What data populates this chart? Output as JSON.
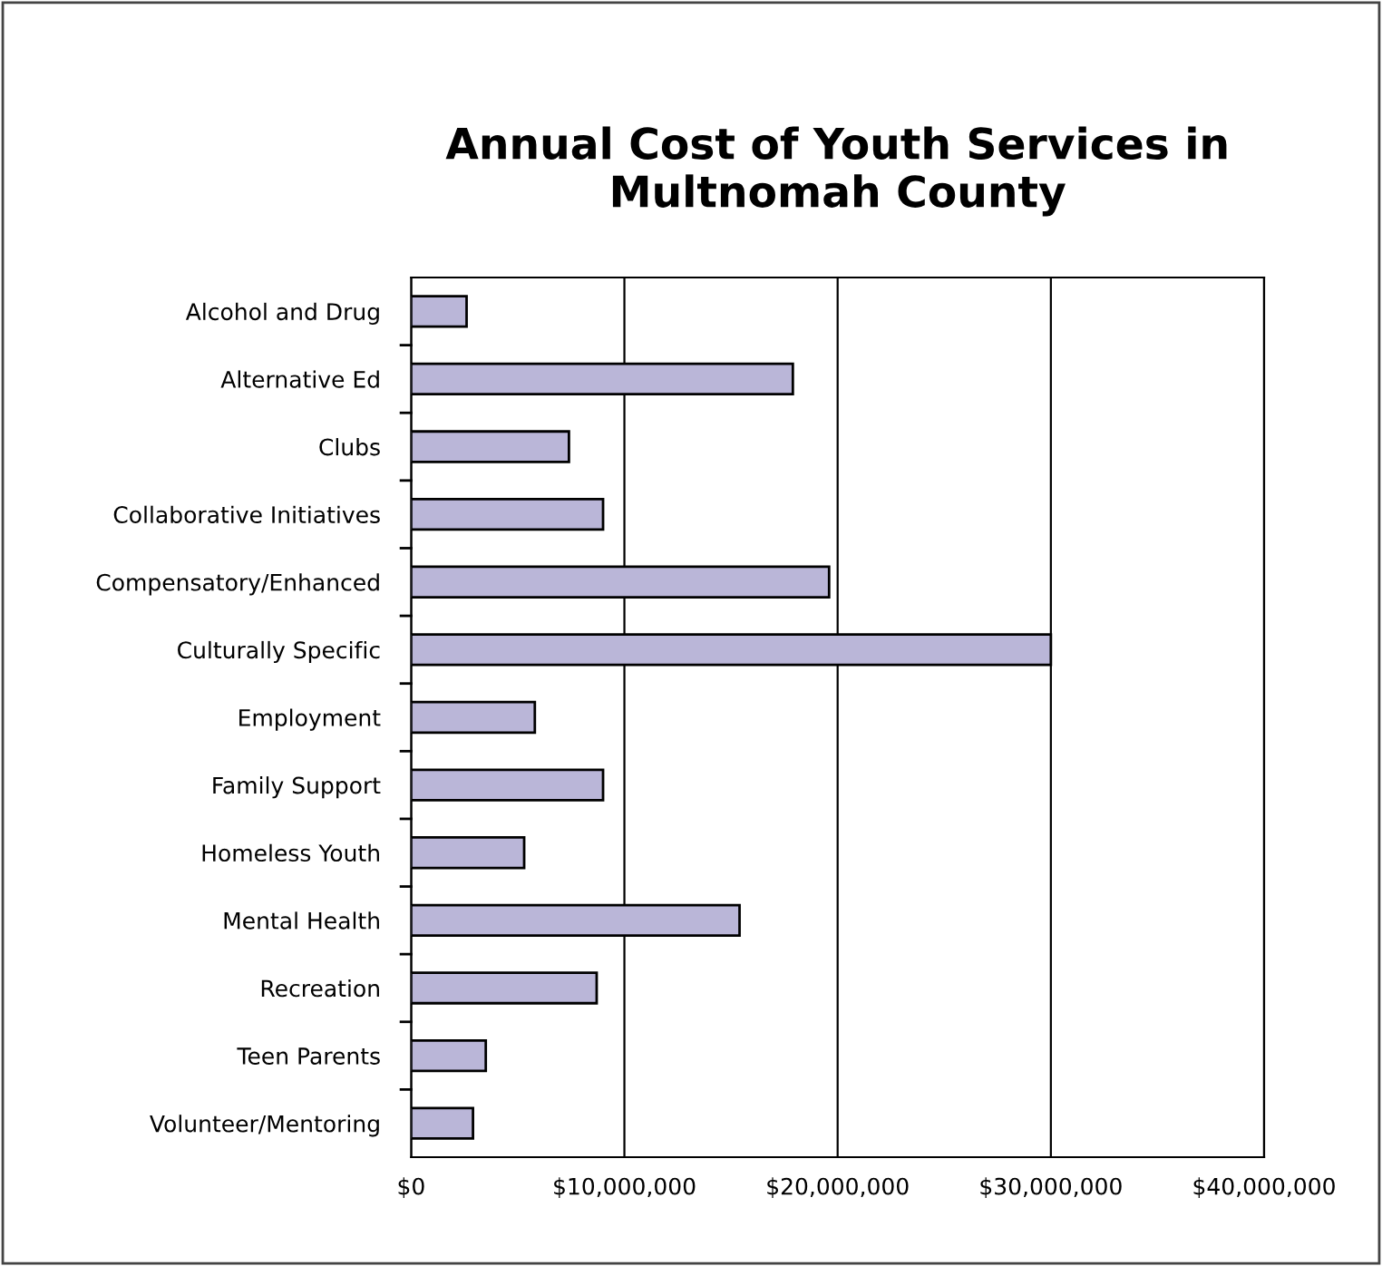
{
  "chart_data": {
    "type": "bar",
    "orientation": "horizontal",
    "title": "Annual Cost of Youth Services in\nMultnomah County",
    "categories": [
      "Alcohol and Drug",
      "Alternative Ed",
      "Clubs",
      "Collaborative Initiatives",
      "Compensatory/Enhanced",
      "Culturally Specific",
      "Employment",
      "Family Support",
      "Homeless Youth",
      "Mental Health",
      "Recreation",
      "Teen Parents",
      "Volunteer/Mentoring"
    ],
    "values": [
      2600000,
      17900000,
      7400000,
      9000000,
      19600000,
      30000000,
      5800000,
      9000000,
      5300000,
      15400000,
      8700000,
      3500000,
      2900000
    ],
    "color": "#bab6d8",
    "xlim": [
      0,
      40000000
    ],
    "xticks": [
      {
        "value": 0,
        "label": "$0"
      },
      {
        "value": 10000000,
        "label": "$10,000,000"
      },
      {
        "value": 20000000,
        "label": "$20,000,000"
      },
      {
        "value": 30000000,
        "label": "$30,000,000"
      },
      {
        "value": 40000000,
        "label": "$40,000,000"
      }
    ],
    "grid": "x"
  }
}
